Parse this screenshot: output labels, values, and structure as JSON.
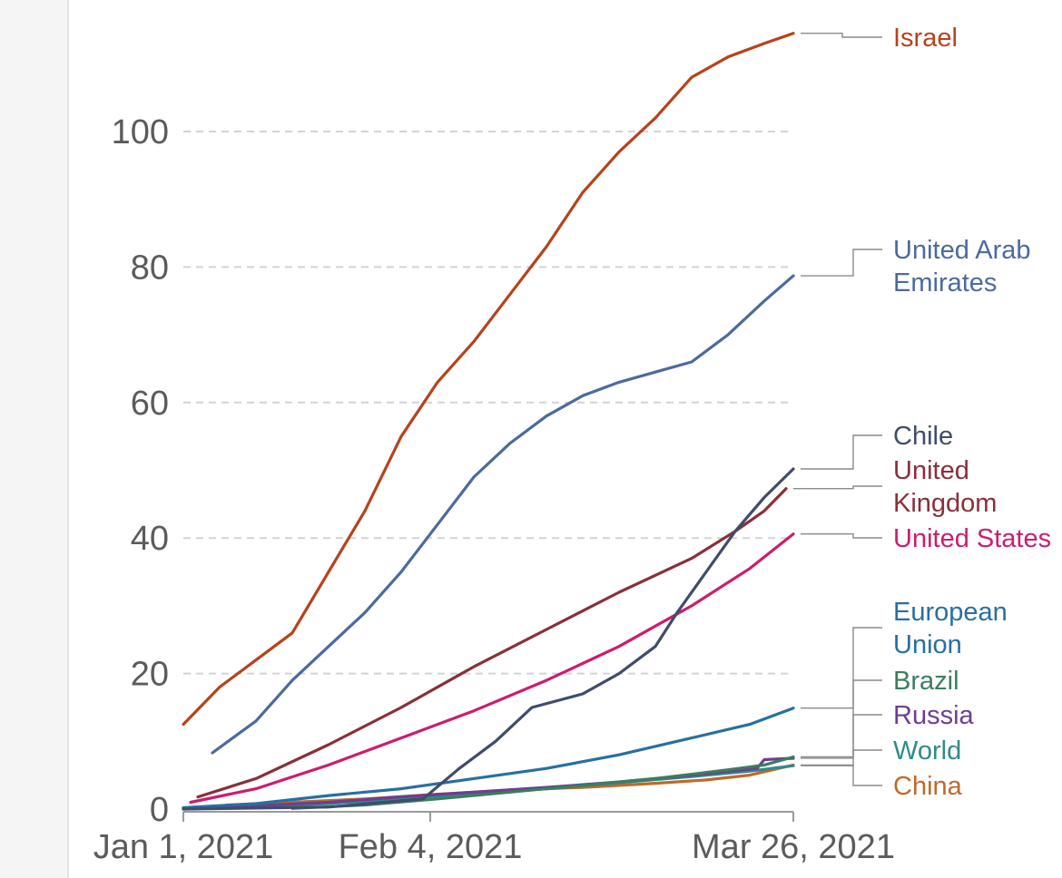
{
  "chart_data": {
    "type": "line",
    "title": "",
    "xlabel": "",
    "ylabel": "",
    "ylim": [
      0,
      115
    ],
    "yticks": [
      0,
      20,
      40,
      60,
      80,
      100
    ],
    "grid": "horizontal dashed",
    "legend": "right (end labels)",
    "xaxis": {
      "start": "Jan 1, 2021",
      "end": "Mar 26, 2021",
      "tick_labels": [
        {
          "day": 0,
          "label": "Jan 1, 2021"
        },
        {
          "day": 34,
          "label": "Feb 4, 2021"
        },
        {
          "day": 84,
          "label": "Mar 26, 2021"
        }
      ]
    },
    "series": [
      {
        "name": "Israel",
        "label_lines": [
          "Israel"
        ],
        "color": "#b5431c",
        "points": [
          [
            0,
            12.5
          ],
          [
            5,
            18
          ],
          [
            10,
            22
          ],
          [
            15,
            26
          ],
          [
            20,
            35
          ],
          [
            25,
            44
          ],
          [
            30,
            55
          ],
          [
            35,
            63
          ],
          [
            40,
            69
          ],
          [
            45,
            76
          ],
          [
            50,
            83
          ],
          [
            55,
            91
          ],
          [
            60,
            97
          ],
          [
            65,
            102
          ],
          [
            70,
            108
          ],
          [
            75,
            111
          ],
          [
            80,
            113
          ],
          [
            84,
            114.5
          ]
        ]
      },
      {
        "name": "United Arab Emirates",
        "label_lines": [
          "United Arab",
          "Emirates"
        ],
        "color": "#4c6a9c",
        "points": [
          [
            4,
            8.3
          ],
          [
            10,
            13
          ],
          [
            15,
            19
          ],
          [
            20,
            24
          ],
          [
            25,
            29
          ],
          [
            30,
            35
          ],
          [
            35,
            42
          ],
          [
            40,
            49
          ],
          [
            45,
            54
          ],
          [
            50,
            58
          ],
          [
            55,
            61
          ],
          [
            60,
            63
          ],
          [
            65,
            64.5
          ],
          [
            70,
            66
          ],
          [
            75,
            70
          ],
          [
            80,
            75
          ],
          [
            84,
            78.7
          ]
        ]
      },
      {
        "name": "Chile",
        "label_lines": [
          "Chile"
        ],
        "color": "#3f4c6b",
        "points": [
          [
            0,
            0
          ],
          [
            20,
            0.3
          ],
          [
            33,
            1.5
          ],
          [
            38,
            6
          ],
          [
            43,
            10
          ],
          [
            48,
            15
          ],
          [
            55,
            17
          ],
          [
            60,
            20
          ],
          [
            65,
            24
          ],
          [
            68,
            29
          ],
          [
            72,
            35
          ],
          [
            76,
            41
          ],
          [
            80,
            46
          ],
          [
            84,
            50.2
          ]
        ]
      },
      {
        "name": "United Kingdom",
        "label_lines": [
          "United",
          "Kingdom"
        ],
        "color": "#883039",
        "points": [
          [
            2,
            1.8
          ],
          [
            10,
            4.5
          ],
          [
            20,
            9.5
          ],
          [
            30,
            15
          ],
          [
            40,
            21
          ],
          [
            50,
            26.5
          ],
          [
            60,
            32
          ],
          [
            70,
            37
          ],
          [
            76,
            41
          ],
          [
            80,
            44
          ],
          [
            83,
            47.3
          ]
        ]
      },
      {
        "name": "United States",
        "label_lines": [
          "United States"
        ],
        "color": "#cc1d6d",
        "points": [
          [
            1,
            1
          ],
          [
            10,
            3
          ],
          [
            20,
            6.5
          ],
          [
            30,
            10.5
          ],
          [
            40,
            14.5
          ],
          [
            50,
            19
          ],
          [
            60,
            24
          ],
          [
            70,
            30
          ],
          [
            78,
            35.5
          ],
          [
            84,
            40.6
          ]
        ]
      },
      {
        "name": "European Union",
        "label_lines": [
          "European",
          "Union"
        ],
        "color": "#286fa1",
        "points": [
          [
            0,
            0.2
          ],
          [
            10,
            0.8
          ],
          [
            20,
            2
          ],
          [
            30,
            3
          ],
          [
            40,
            4.5
          ],
          [
            50,
            6
          ],
          [
            60,
            8
          ],
          [
            70,
            10.5
          ],
          [
            78,
            12.5
          ],
          [
            84,
            14.9
          ]
        ]
      },
      {
        "name": "Brazil",
        "label_lines": [
          "Brazil"
        ],
        "color": "#3a7e5e",
        "points": [
          [
            15,
            0.1
          ],
          [
            25,
            0.6
          ],
          [
            35,
            1.5
          ],
          [
            45,
            2.5
          ],
          [
            55,
            3.5
          ],
          [
            65,
            4.5
          ],
          [
            75,
            5.8
          ],
          [
            80,
            6.5
          ],
          [
            84,
            7.7
          ]
        ]
      },
      {
        "name": "Russia",
        "label_lines": [
          "Russia"
        ],
        "color": "#6d3e91",
        "points": [
          [
            0,
            0.1
          ],
          [
            10,
            0.5
          ],
          [
            20,
            1
          ],
          [
            30,
            1.8
          ],
          [
            40,
            2.5
          ],
          [
            50,
            3.2
          ],
          [
            60,
            4
          ],
          [
            70,
            5
          ],
          [
            79,
            6
          ],
          [
            80,
            7.3
          ],
          [
            84,
            7.5
          ]
        ]
      },
      {
        "name": "World",
        "label_lines": [
          "World"
        ],
        "color": "#2f8b8a",
        "points": [
          [
            0,
            0
          ],
          [
            10,
            0.3
          ],
          [
            20,
            0.8
          ],
          [
            30,
            1.5
          ],
          [
            40,
            2.3
          ],
          [
            50,
            3
          ],
          [
            60,
            3.9
          ],
          [
            70,
            4.8
          ],
          [
            78,
            5.6
          ],
          [
            84,
            6.4
          ]
        ]
      },
      {
        "name": "China",
        "label_lines": [
          "China"
        ],
        "color": "#c0682b",
        "points": [
          [
            6,
            0.6
          ],
          [
            15,
            1
          ],
          [
            25,
            1.5
          ],
          [
            35,
            2.2
          ],
          [
            45,
            2.8
          ],
          [
            55,
            3.2
          ],
          [
            65,
            3.8
          ],
          [
            72,
            4.3
          ],
          [
            78,
            5
          ],
          [
            84,
            6.5
          ]
        ]
      }
    ]
  }
}
